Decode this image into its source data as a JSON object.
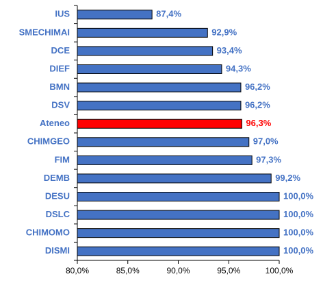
{
  "chart_data": {
    "type": "hbar",
    "categories": [
      "IUS",
      "SMECHIMAI",
      "DCE",
      "DIEF",
      "BMN",
      "DSV",
      "Ateneo",
      "CHIMGEO",
      "FIM",
      "DEMB",
      "DESU",
      "DSLC",
      "CHIMOMO",
      "DISMI"
    ],
    "values": [
      87.4,
      92.9,
      93.4,
      94.3,
      96.2,
      96.2,
      96.3,
      97.0,
      97.3,
      99.2,
      100.0,
      100.0,
      100.0,
      100.0
    ],
    "value_labels": [
      "87,4%",
      "92,9%",
      "93,4%",
      "94,3%",
      "96,2%",
      "96,2%",
      "96,3%",
      "97,0%",
      "97,3%",
      "99,2%",
      "100,0%",
      "100,0%",
      "100,0%",
      "100,0%"
    ],
    "colors": [
      "#4472c4",
      "#4472c4",
      "#4472c4",
      "#4472c4",
      "#4472c4",
      "#4472c4",
      "#ff0000",
      "#4472c4",
      "#4472c4",
      "#4472c4",
      "#4472c4",
      "#4472c4",
      "#4472c4",
      "#4472c4"
    ],
    "xlim": [
      80,
      100
    ],
    "xticks": [
      {
        "value": 80,
        "label": "80,0%"
      },
      {
        "value": 85,
        "label": "85,0%"
      },
      {
        "value": 90,
        "label": "90,0%"
      },
      {
        "value": 95,
        "label": "95,0%"
      },
      {
        "value": 100,
        "label": "100,0%"
      }
    ],
    "grid": false
  }
}
